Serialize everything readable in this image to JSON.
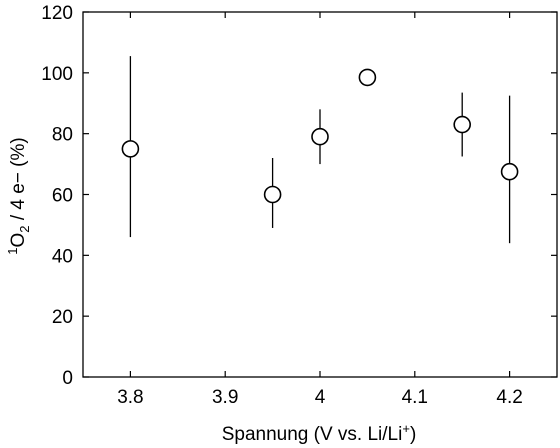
{
  "chart_data": {
    "type": "scatter",
    "xlabel_main": "Spannung (V vs. Li/Li",
    "xlabel_sup": "+",
    "xlabel_end": ")",
    "ylabel_sup": "1",
    "ylabel_main": "O",
    "ylabel_sub": "2",
    "ylabel_end": " / 4 e− (%)",
    "xlim": [
      3.75,
      4.25
    ],
    "ylim": [
      0,
      120
    ],
    "xticks": [
      3.8,
      3.9,
      4.0,
      4.1,
      4.2
    ],
    "xtick_labels": [
      "3.8",
      "3.9",
      "4",
      "4.1",
      "4.2"
    ],
    "yticks": [
      0,
      20,
      40,
      60,
      80,
      100,
      120
    ],
    "ytick_labels": [
      "0",
      "20",
      "40",
      "60",
      "80",
      "100",
      "120"
    ],
    "grid": false,
    "marker": "open-circle",
    "points": [
      {
        "x": 3.8,
        "y": 75.0,
        "err_low": 46.0,
        "err_high": 105.5
      },
      {
        "x": 3.95,
        "y": 60.0,
        "err_low": 49.0,
        "err_high": 72.0
      },
      {
        "x": 4.0,
        "y": 79.0,
        "err_low": 70.0,
        "err_high": 88.0
      },
      {
        "x": 4.05,
        "y": 98.5,
        "err_low": 98.5,
        "err_high": 98.5
      },
      {
        "x": 4.15,
        "y": 83.0,
        "err_low": 72.5,
        "err_high": 93.5
      },
      {
        "x": 4.2,
        "y": 67.5,
        "err_low": 44.0,
        "err_high": 92.5
      }
    ]
  }
}
